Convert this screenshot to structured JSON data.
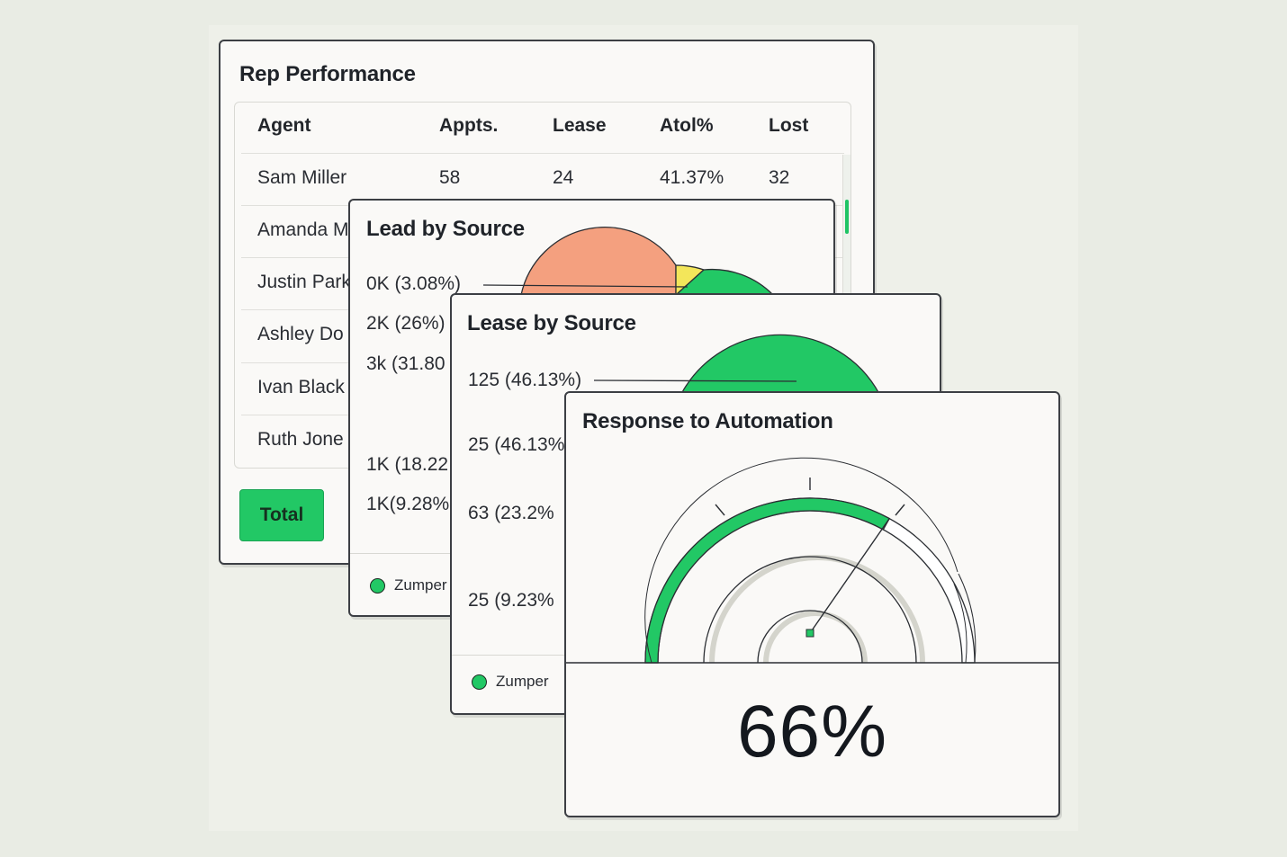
{
  "colors": {
    "accent_green": "#22c865",
    "salmon": "#f4a07f",
    "yellow": "#f3e65a",
    "border": "#3c3f44",
    "card_bg": "#faf9f7"
  },
  "rep_performance": {
    "title": "Rep Performance",
    "columns": [
      "Agent",
      "Appts.",
      "Lease",
      "Atol%",
      "Lost"
    ],
    "rows": [
      [
        "Sam Miller",
        "58",
        "24",
        "41.37%",
        "32"
      ],
      [
        "Amanda M",
        "",
        "",
        "",
        ""
      ],
      [
        "Justin Park",
        "",
        "",
        "",
        ""
      ],
      [
        "Ashley Do",
        "",
        "",
        "",
        ""
      ],
      [
        "Ivan Black",
        "",
        "",
        "",
        ""
      ],
      [
        "Ruth Jone",
        "",
        "",
        "",
        ""
      ]
    ],
    "total_label": "Total"
  },
  "lead_by_source": {
    "title": "Lead by Source",
    "labels": [
      "0K (3.08%)",
      "2K (26%)",
      "3k (31.80",
      "1K (18.22",
      "1K(9.28%"
    ],
    "legend": [
      "Zumper"
    ]
  },
  "lease_by_source": {
    "title": "Lease by Source",
    "labels": [
      "125 (46.13%)",
      "25 (46.13%",
      "63 (23.2%",
      "25 (9.23%"
    ],
    "legend": [
      "Zumper"
    ]
  },
  "response_to_automation": {
    "title": "Response to Automation",
    "value_label": "66%",
    "value": 0.66
  }
}
